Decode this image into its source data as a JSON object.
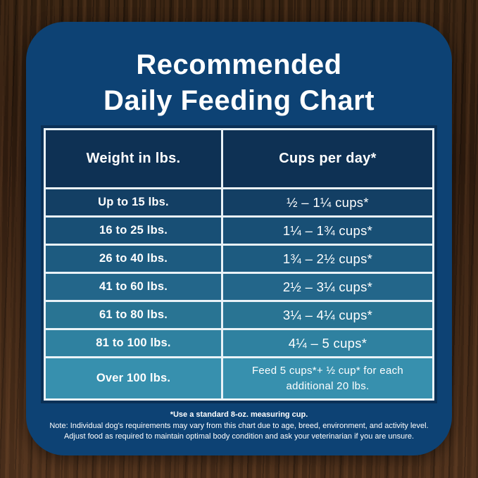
{
  "title": {
    "line1": "Recommended",
    "line2": "Daily Feeding Chart"
  },
  "chart_data": {
    "type": "table",
    "title": "Recommended Daily Feeding Chart",
    "columns": [
      "Weight in lbs.",
      "Cups per day*"
    ],
    "rows": [
      [
        "Up to 15 lbs.",
        "½ – 1¼ cups*"
      ],
      [
        "16 to 25 lbs.",
        "1¼ – 1¾ cups*"
      ],
      [
        "26 to 40 lbs.",
        "1¾ – 2½ cups*"
      ],
      [
        "41 to 60 lbs.",
        "2½ – 3¼ cups*"
      ],
      [
        "61 to 80 lbs.",
        "3¼ – 4¼ cups*"
      ],
      [
        "81 to 100 lbs.",
        "4¼ – 5 cups*"
      ],
      [
        "Over 100 lbs.",
        "Feed 5 cups*+ ½ cup* for each additional 20 lbs."
      ]
    ],
    "footnotes": [
      "*Use a standard 8-oz. measuring cup.",
      "Note: Individual dog's requirements may vary from this chart due to age, breed, environment, and activity level.",
      "Adjust food as required to maintain optimal body condition and ask your veterinarian if you are unsure."
    ]
  },
  "colors": {
    "card_bg": "#0d4274",
    "header_bg": "#0e3154",
    "row_colors": [
      "#133f64",
      "#184f75",
      "#1d5b80",
      "#23668a",
      "#297493",
      "#2f81a0",
      "#3790ae"
    ],
    "grid_line": "#e9f2f7",
    "text": "#ffffff"
  }
}
